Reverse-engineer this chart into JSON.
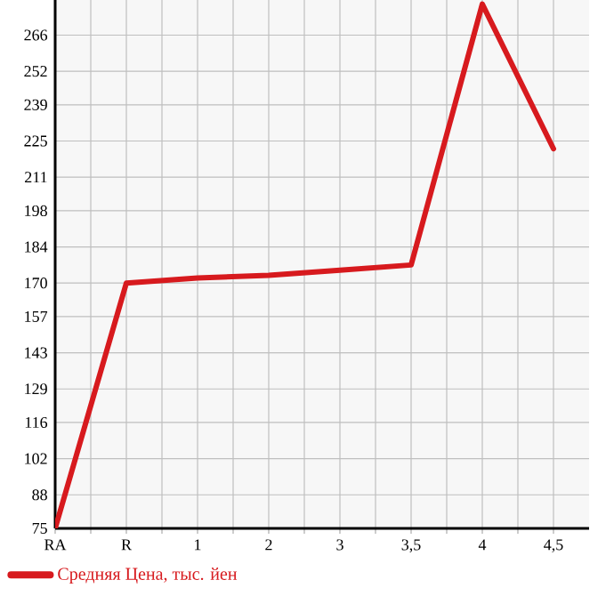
{
  "chart_data": {
    "type": "line",
    "categories": [
      "RA",
      "R",
      "1",
      "2",
      "3",
      "3,5",
      "4",
      "4,5"
    ],
    "series": [
      {
        "name": "Средняя Цена, тыс. йен",
        "color": "#d71a1e",
        "values": [
          75,
          170,
          172,
          173,
          175,
          177,
          278,
          222
        ]
      }
    ],
    "ylim": [
      75,
      279.6
    ],
    "yticks": [
      75,
      88,
      102,
      116,
      129,
      143,
      157,
      170,
      184,
      198,
      211,
      225,
      239,
      252,
      266
    ],
    "grid": true,
    "legend": "bottom",
    "marker": "none",
    "line_style": "solid"
  }
}
